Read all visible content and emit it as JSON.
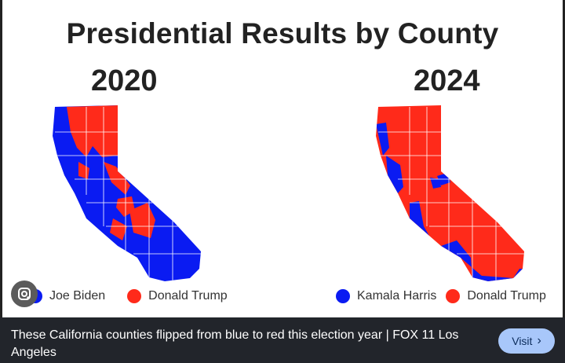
{
  "title": "Presidential Results by County",
  "years": {
    "left": "2020",
    "right": "2024"
  },
  "legend_2020": {
    "blue_label": "Joe Biden",
    "red_label": "Donald Trump"
  },
  "legend_2024": {
    "blue_label": "Kamala Harris",
    "red_label": "Donald Trump"
  },
  "colors": {
    "blue": "#0a1bf2",
    "red": "#ff2a1a"
  },
  "caption": "These California counties flipped from blue to red this election year | FOX 11 Los Angeles",
  "visit_label": "Visit",
  "visit_chevron": "›",
  "icons": {
    "lens": "google-lens-icon"
  }
}
